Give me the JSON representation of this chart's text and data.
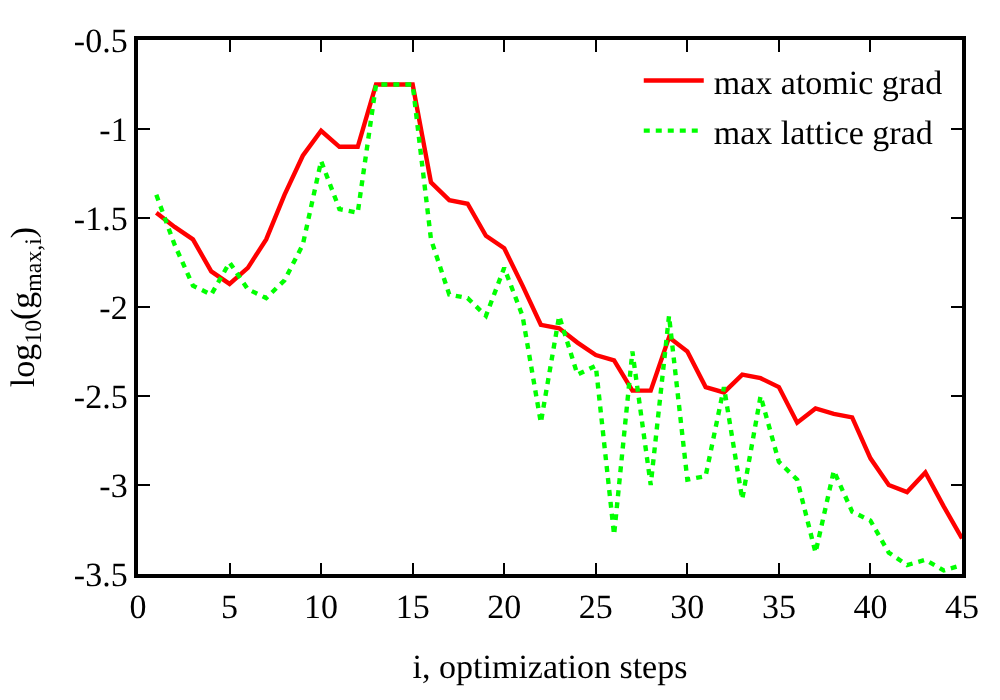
{
  "chart_data": {
    "type": "line",
    "xlabel": "i, optimization steps",
    "ylabel": "log$_{10}$(g$_{max,i}$)",
    "x": [
      1,
      2,
      3,
      4,
      5,
      6,
      7,
      8,
      9,
      10,
      11,
      12,
      13,
      14,
      15,
      16,
      17,
      18,
      19,
      20,
      21,
      22,
      23,
      24,
      25,
      26,
      27,
      28,
      29,
      30,
      31,
      32,
      33,
      34,
      35,
      36,
      37,
      38,
      39,
      40,
      41,
      42,
      43,
      44,
      45
    ],
    "series": [
      {
        "name": "max atomic grad",
        "color": "#ff0000",
        "line_style": "solid",
        "values": [
          -1.47,
          -1.55,
          -1.62,
          -1.8,
          -1.87,
          -1.78,
          -1.62,
          -1.37,
          -1.15,
          -1.01,
          -1.1,
          -1.1,
          -0.75,
          -0.75,
          -0.75,
          -1.3,
          -1.4,
          -1.42,
          -1.6,
          -1.67,
          -1.88,
          -2.1,
          -2.12,
          -2.2,
          -2.27,
          -2.3,
          -2.47,
          -2.47,
          -2.17,
          -2.25,
          -2.45,
          -2.48,
          -2.38,
          -2.4,
          -2.45,
          -2.65,
          -2.57,
          -2.6,
          -2.62,
          -2.85,
          -3.0,
          -3.04,
          -2.93,
          -3.12,
          -3.3
        ]
      },
      {
        "name": "max lattice grad",
        "color": "#00ff00",
        "line_style": "dotted",
        "values": [
          -1.37,
          -1.65,
          -1.88,
          -1.93,
          -1.75,
          -1.9,
          -1.95,
          -1.85,
          -1.65,
          -1.18,
          -1.45,
          -1.47,
          -0.75,
          -0.75,
          -0.75,
          -1.62,
          -1.93,
          -1.95,
          -2.05,
          -1.78,
          -2.05,
          -2.65,
          -2.05,
          -2.38,
          -2.33,
          -3.28,
          -2.25,
          -3.0,
          -2.05,
          -2.97,
          -2.95,
          -2.45,
          -3.08,
          -2.5,
          -2.87,
          -2.97,
          -3.38,
          -2.92,
          -3.15,
          -3.2,
          -3.38,
          -3.45,
          -3.42,
          -3.48,
          -3.45
        ]
      }
    ],
    "xlim": [
      0,
      45
    ],
    "xticks": [
      0,
      5,
      10,
      15,
      20,
      25,
      30,
      35,
      40,
      45
    ],
    "ylim": [
      -3.5,
      -0.5
    ],
    "yticks": [
      -3.5,
      -3,
      -2.5,
      -2,
      -1.5,
      -1,
      -0.5
    ],
    "legend": "top right",
    "marker": "none"
  }
}
